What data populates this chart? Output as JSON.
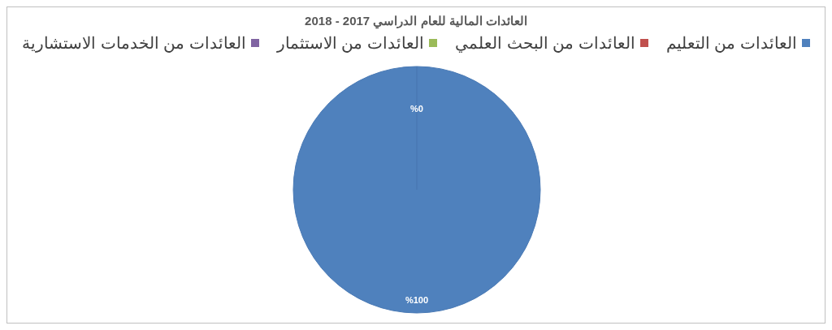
{
  "chart_data": {
    "type": "pie",
    "title": "العائدات المالية للعام الدراسي 2017 - 2018",
    "categories": [
      "العائدات من التعليم",
      "العائدات من البحث العلمي",
      "العائدات من الاستثمار",
      "العائدات من الخدمات الاستشارية"
    ],
    "values": [
      100,
      0,
      0,
      0
    ],
    "colors": [
      "#4f81bd",
      "#c0504d",
      "#9bbb59",
      "#8064a2"
    ],
    "value_labels": [
      "%100",
      "%0",
      null,
      null
    ],
    "legend": "top"
  }
}
